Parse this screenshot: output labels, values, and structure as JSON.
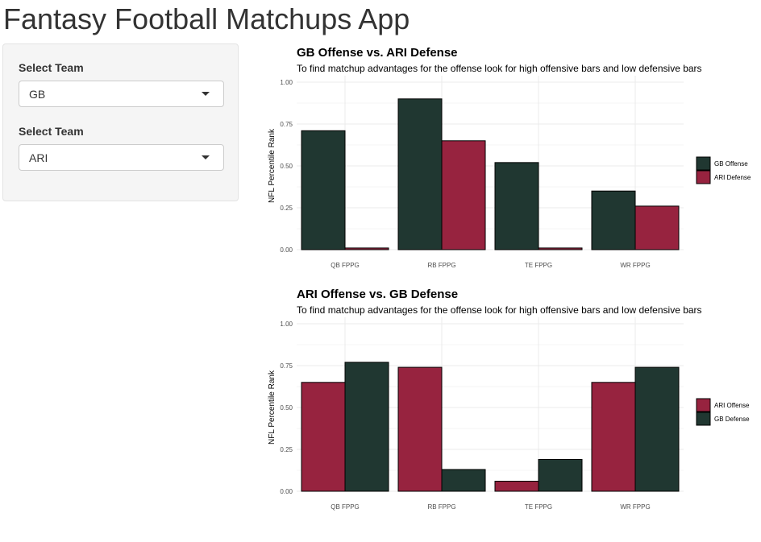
{
  "app": {
    "title": "Fantasy Football Matchups App"
  },
  "sidebar": {
    "selects": [
      {
        "label": "Select Team",
        "value": "GB"
      },
      {
        "label": "Select Team",
        "value": "ARI"
      }
    ]
  },
  "colors": {
    "gb": "#203731",
    "ari": "#97233F",
    "gridline": "#ebebeb"
  },
  "chart_data": [
    {
      "type": "bar",
      "title": "GB Offense vs. ARI Defense",
      "subtitle": "To find matchup advantages for the offense look for high offensive bars and low defensive bars",
      "xlabel": "",
      "ylabel": "NFL Percentile Rank",
      "ylim": [
        0,
        1
      ],
      "yticks": [
        "0.00",
        "0.25",
        "0.50",
        "0.75",
        "1.00"
      ],
      "categories": [
        "QB FPPG",
        "RB FPPG",
        "TE FPPG",
        "WR FPPG"
      ],
      "grid": true,
      "legend": "right",
      "series": [
        {
          "name": "GB Offense",
          "color": "#203731",
          "values": [
            0.71,
            0.9,
            0.52,
            0.35
          ]
        },
        {
          "name": "ARI Defense",
          "color": "#97233F",
          "values": [
            0.01,
            0.65,
            0.01,
            0.26
          ]
        }
      ]
    },
    {
      "type": "bar",
      "title": "ARI Offense vs. GB Defense",
      "subtitle": "To find matchup advantages for the offense look for high offensive bars and low defensive bars",
      "xlabel": "",
      "ylabel": "NFL Percentile Rank",
      "ylim": [
        0,
        1
      ],
      "yticks": [
        "0.00",
        "0.25",
        "0.50",
        "0.75",
        "1.00"
      ],
      "categories": [
        "QB FPPG",
        "RB FPPG",
        "TE FPPG",
        "WR FPPG"
      ],
      "grid": true,
      "legend": "right",
      "series": [
        {
          "name": "ARI Offense",
          "color": "#97233F",
          "values": [
            0.65,
            0.74,
            0.06,
            0.65
          ]
        },
        {
          "name": "GB Defense",
          "color": "#203731",
          "values": [
            0.77,
            0.13,
            0.19,
            0.74
          ]
        }
      ]
    }
  ]
}
